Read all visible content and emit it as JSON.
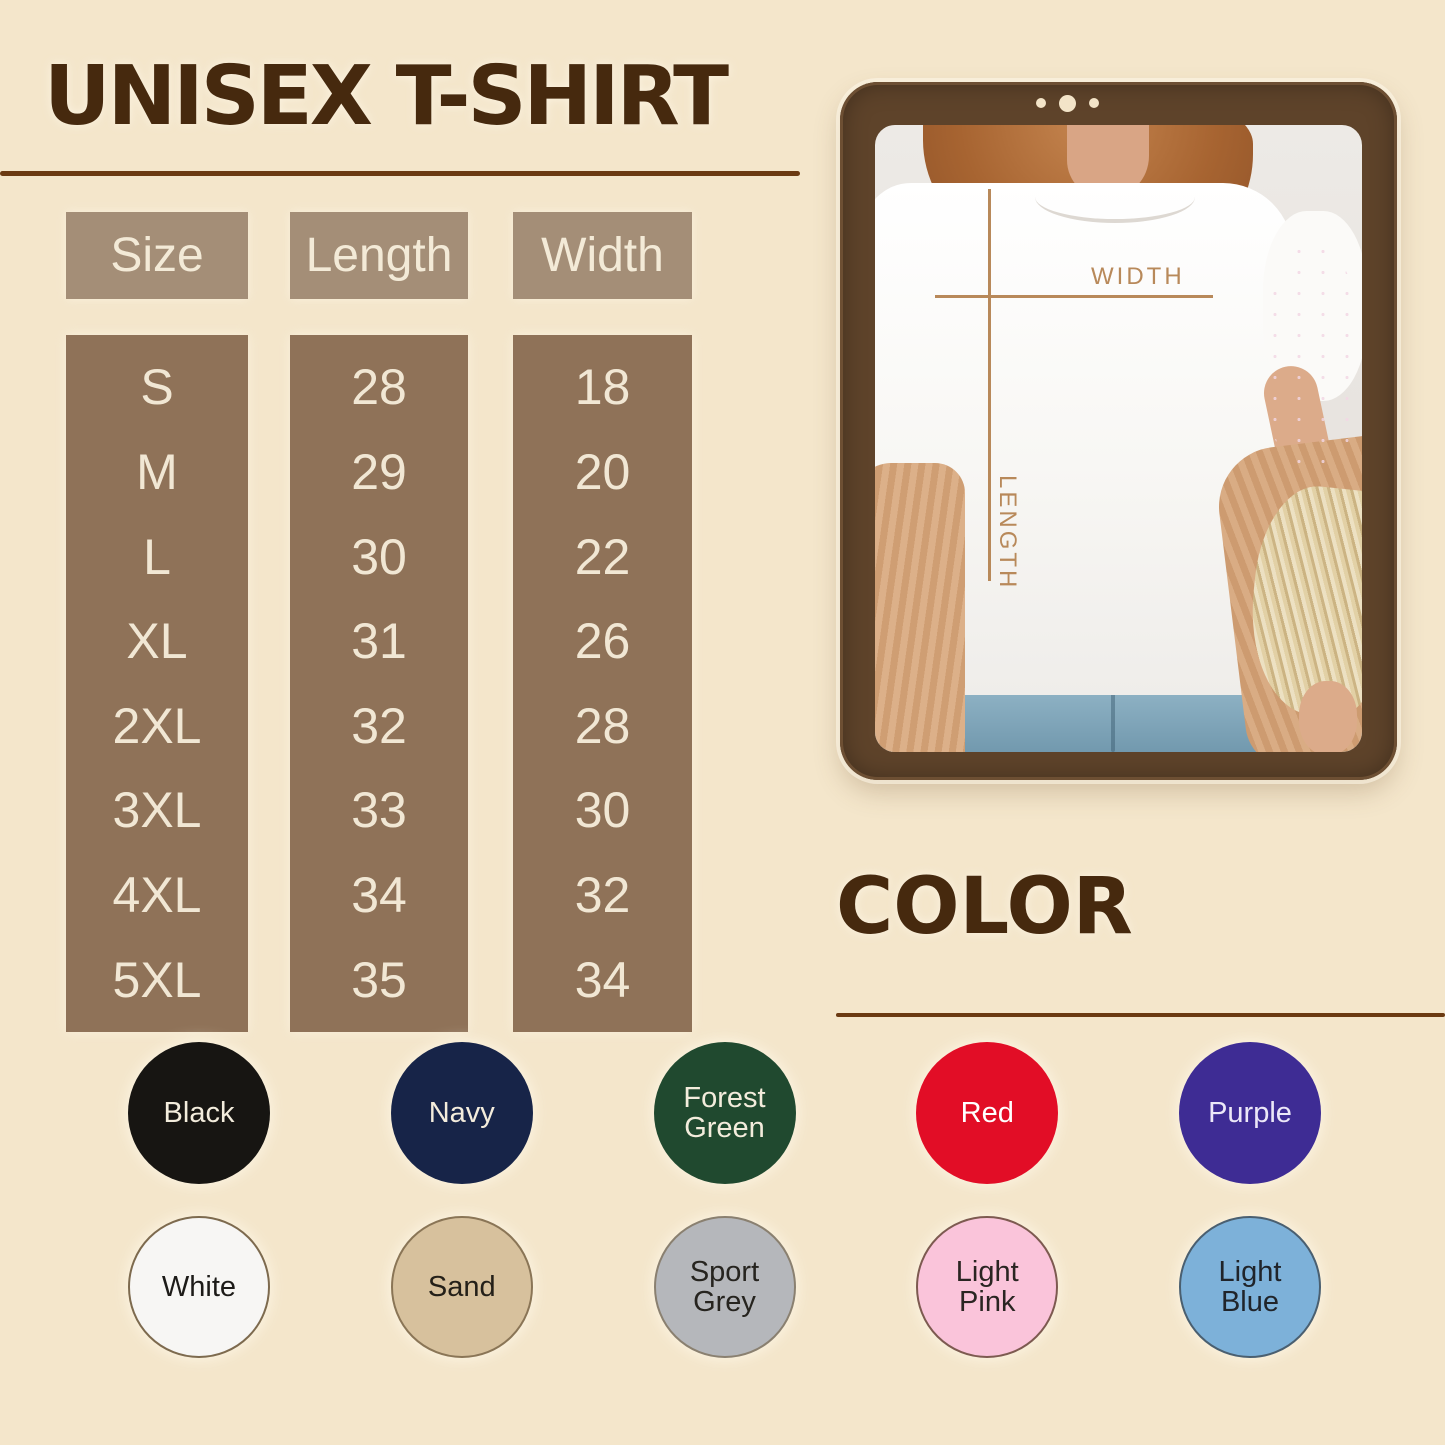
{
  "page": {
    "background": "#f4e6cb",
    "heading_color": "#46290e",
    "rule_color": "#6b3a12",
    "table_header_bg": "#a48e77",
    "table_body_bg": "#8f7258",
    "table_text_color": "#f1e7d4",
    "frame_color": "#5e432a",
    "measure_color": "#b8895a"
  },
  "size_chart": {
    "title": "UNISEX T-SHIRT",
    "columns": [
      "Size",
      "Length",
      "Width"
    ],
    "rows": [
      {
        "size": "S",
        "length": "28",
        "width": "18"
      },
      {
        "size": "M",
        "length": "29",
        "width": "20"
      },
      {
        "size": "L",
        "length": "30",
        "width": "22"
      },
      {
        "size": "XL",
        "length": "31",
        "width": "26"
      },
      {
        "size": "2XL",
        "length": "32",
        "width": "28"
      },
      {
        "size": "3XL",
        "length": "33",
        "width": "30"
      },
      {
        "size": "4XL",
        "length": "34",
        "width": "32"
      },
      {
        "size": "5XL",
        "length": "35",
        "width": "34"
      }
    ]
  },
  "photo": {
    "width_label": "WIDTH",
    "length_label": "LENGTH"
  },
  "color_section": {
    "title": "COLOR",
    "rows": [
      [
        {
          "label": "Black",
          "circle_color": "#171512",
          "label_color": "#f3ecdc",
          "border_color": null
        },
        {
          "label": "Navy",
          "circle_color": "#172448",
          "label_color": "#f3ecdc",
          "border_color": null
        },
        {
          "label": "Forest Green",
          "circle_color": "#20492f",
          "label_color": "#f3ecdc",
          "border_color": null
        },
        {
          "label": "Red",
          "circle_color": "#e20d26",
          "label_color": "#ffffff",
          "border_color": null
        },
        {
          "label": "Purple",
          "circle_color": "#3e2c94",
          "label_color": "#ece8f8",
          "border_color": null
        }
      ],
      [
        {
          "label": "White",
          "circle_color": "#f7f6f4",
          "label_color": "#1d1b18",
          "border_color": "#7d6a4e"
        },
        {
          "label": "Sand",
          "circle_color": "#d7c19d",
          "label_color": "#242019",
          "border_color": "#8a7556"
        },
        {
          "label": "Sport Grey",
          "circle_color": "#b5b7bb",
          "label_color": "#26241f",
          "border_color": "#8a8070"
        },
        {
          "label": "Light Pink",
          "circle_color": "#fac4da",
          "label_color": "#2a2522",
          "border_color": "#7d5a50"
        },
        {
          "label": "Light Blue",
          "circle_color": "#7db1d9",
          "label_color": "#20242a",
          "border_color": "#4a5f70"
        }
      ]
    ]
  },
  "chart_data": {
    "type": "table",
    "title": "UNISEX T-SHIRT",
    "columns": [
      "Size",
      "Length",
      "Width"
    ],
    "rows": [
      [
        "S",
        28,
        18
      ],
      [
        "M",
        29,
        20
      ],
      [
        "L",
        30,
        22
      ],
      [
        "XL",
        31,
        26
      ],
      [
        "2XL",
        32,
        28
      ],
      [
        "3XL",
        33,
        30
      ],
      [
        "4XL",
        34,
        32
      ],
      [
        "5XL",
        35,
        34
      ]
    ],
    "color_options": [
      "Black",
      "Navy",
      "Forest Green",
      "Red",
      "Purple",
      "White",
      "Sand",
      "Sport Grey",
      "Light Pink",
      "Light Blue"
    ]
  }
}
